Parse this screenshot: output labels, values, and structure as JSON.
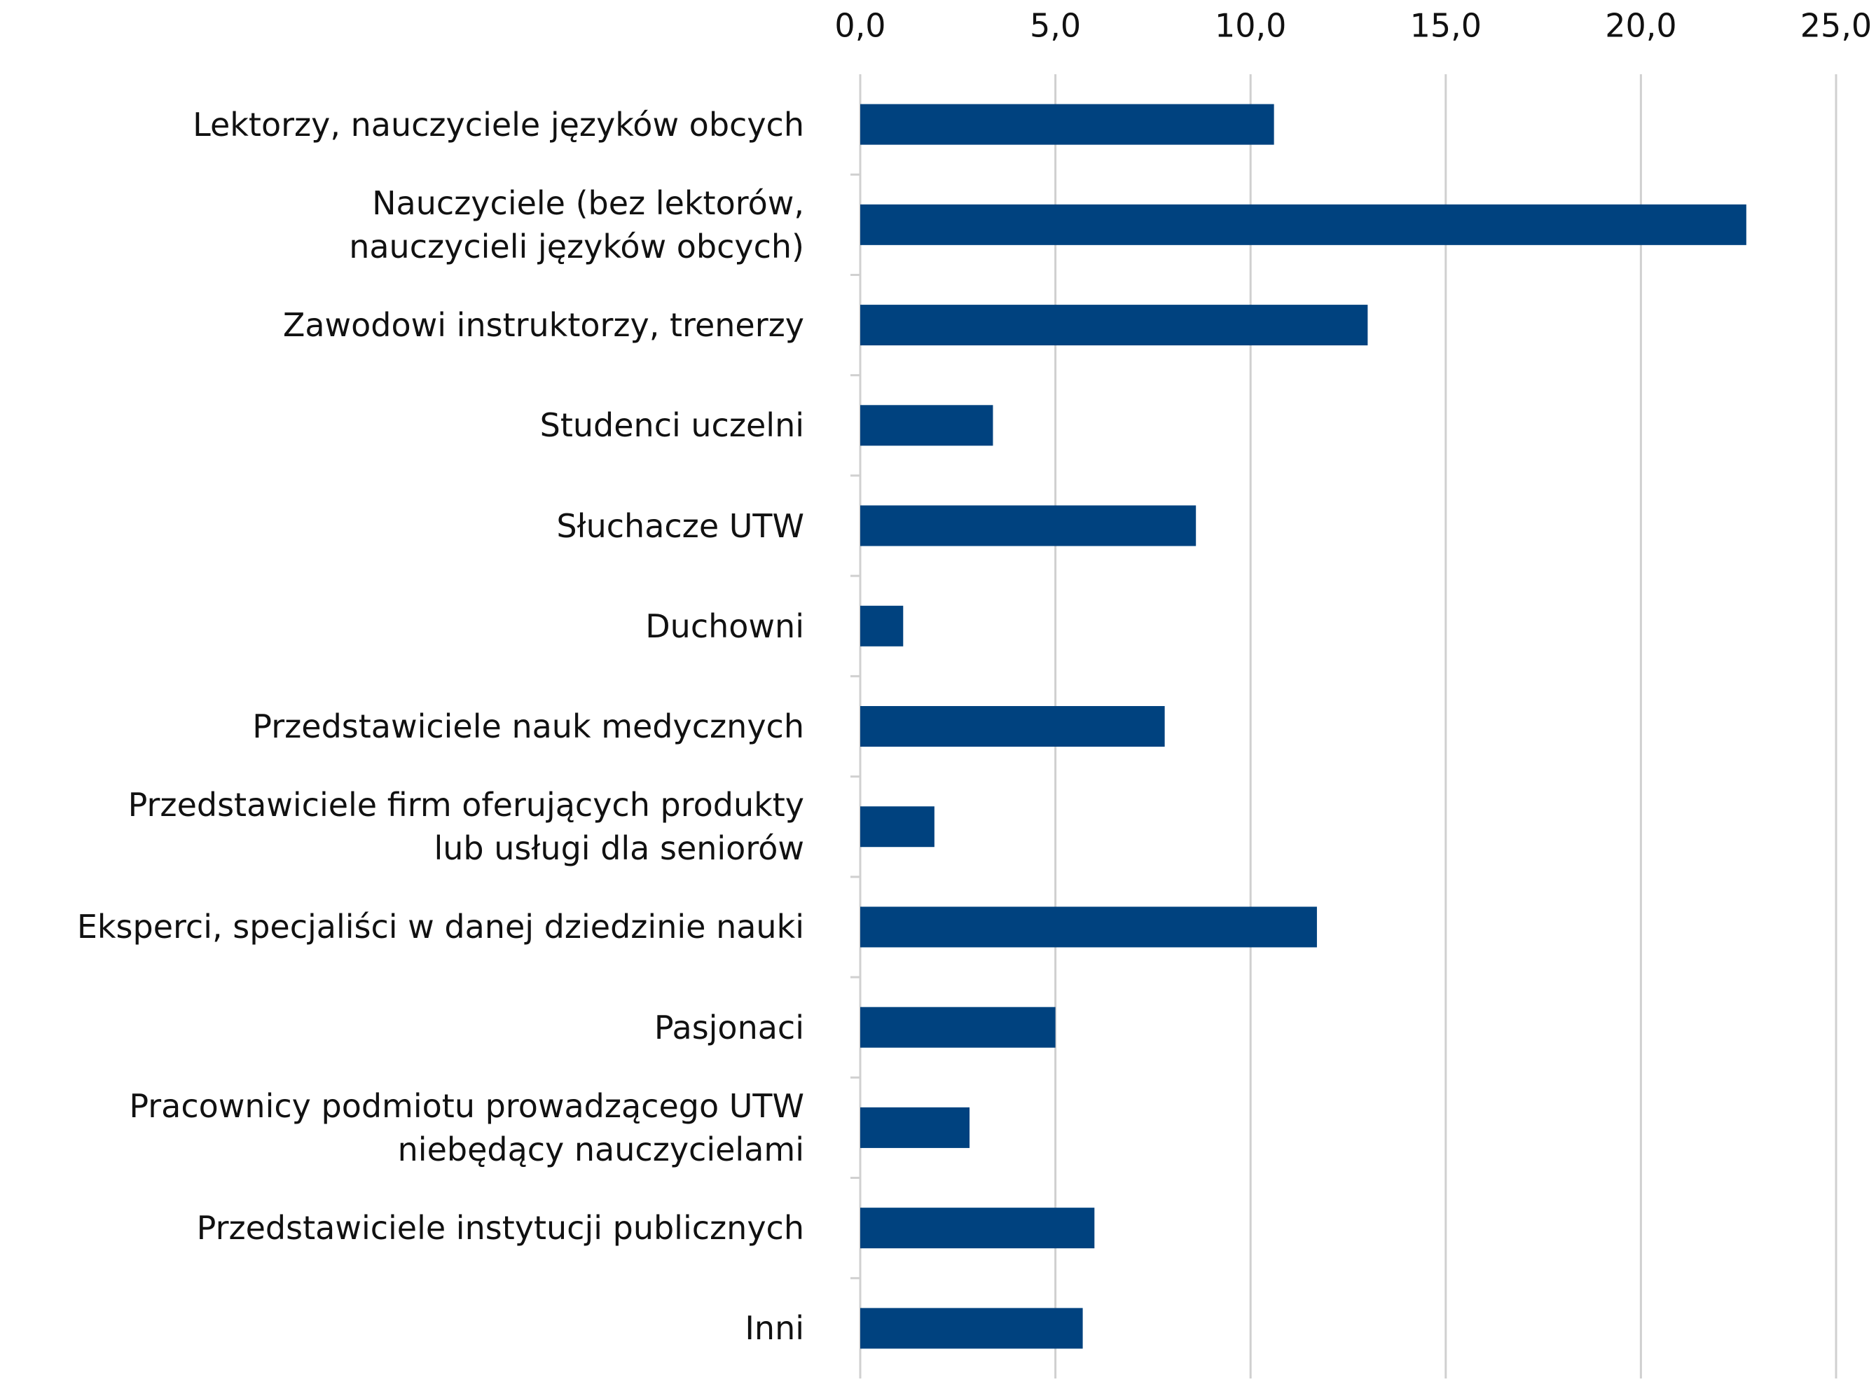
{
  "chart_data": {
    "type": "bar",
    "orientation": "horizontal",
    "categories": [
      "Lektorzy, nauczyciele języków obcych",
      "Nauczyciele (bez lektorów,\nnauczycieli języków obcych)",
      "Zawodowi instruktorzy, trenerzy",
      "Studenci uczelni",
      "Słuchacze UTW",
      "Duchowni",
      "Przedstawiciele nauk medycznych",
      "Przedstawiciele firm oferujących produkty\nlub usługi dla seniorów",
      "Eksperci, specjaliści w danej dziedzinie nauki",
      "Pasjonaci",
      "Pracownicy podmiotu prowadzącego UTW\nniebędący nauczycielami",
      "Przedstawiciele instytucji publicznych",
      "Inni"
    ],
    "values": [
      10.6,
      22.7,
      13.0,
      3.4,
      8.6,
      1.1,
      7.8,
      1.9,
      11.7,
      5.0,
      2.8,
      6.0,
      5.7
    ],
    "color": "#00427f",
    "xlim": [
      0,
      25
    ],
    "xticks": [
      {
        "value": 0,
        "label": "0,0"
      },
      {
        "value": 5,
        "label": "5,0"
      },
      {
        "value": 10,
        "label": "10,0"
      },
      {
        "value": 15,
        "label": "15,0"
      },
      {
        "value": 20,
        "label": "20,0"
      },
      {
        "value": 25,
        "label": "25,0"
      }
    ],
    "grid": true
  }
}
